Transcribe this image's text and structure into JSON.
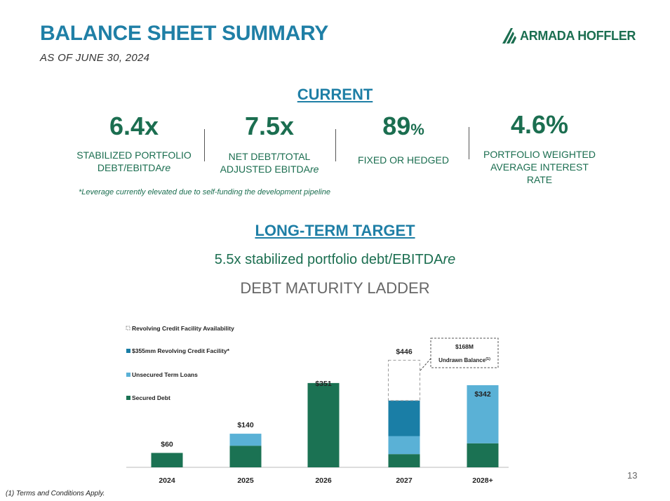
{
  "header": {
    "title": "BALANCE SHEET SUMMARY",
    "subtitle": "AS OF JUNE 30, 2024",
    "logo_text": "ARMADA HOFFLER"
  },
  "current": {
    "heading": "CURRENT",
    "metrics": [
      {
        "value": "6.4x",
        "suffix": "",
        "label_line1": "STABILIZED PORTFOLIO",
        "label_line2": "DEBT/EBITDA",
        "label_italic": "re"
      },
      {
        "value": "7.5x",
        "suffix": "",
        "label_line1": "NET DEBT/TOTAL",
        "label_line2": "ADJUSTED EBITDA",
        "label_italic": "re"
      },
      {
        "value": "89",
        "suffix": "%",
        "label_line1": "FIXED OR HEDGED",
        "label_line2": "",
        "label_italic": ""
      },
      {
        "value": "4.6%",
        "suffix": "",
        "label_line1": "PORTFOLIO WEIGHTED",
        "label_line2": "AVERAGE INTEREST",
        "label_line3": "RATE"
      }
    ],
    "note": "*Leverage currently elevated due to self-funding the development pipeline"
  },
  "long_term": {
    "heading": "LONG-TERM TARGET",
    "text_main": "5.5x stabilized portfolio debt/EBITDA",
    "text_italic": "re"
  },
  "ladder_title": "DEBT MATURITY LADDER",
  "colors": {
    "secured": "#1b7253",
    "unsecured": "#5ab1d6",
    "revolver": "#1a7ea6",
    "availability_border": "#9a9a9a"
  },
  "chart_data": {
    "type": "bar",
    "stacked": true,
    "categories": [
      "2024",
      "2025",
      "2026",
      "2027",
      "2028+"
    ],
    "series": [
      {
        "name": "Secured Debt",
        "values": [
          60,
          90,
          351,
          55,
          100
        ]
      },
      {
        "name": "Unsecured Term Loans",
        "values": [
          0,
          50,
          0,
          75,
          242
        ]
      },
      {
        "name": "$355mm Revolving Credit Facility*",
        "values": [
          0,
          0,
          0,
          148,
          0
        ]
      },
      {
        "name": "Revolving Credit Facility Availability",
        "values": [
          0,
          0,
          0,
          168,
          0
        ]
      }
    ],
    "total_labels": [
      "$60",
      "$140",
      "$351",
      "$446",
      "$342"
    ],
    "callout": {
      "line1": "$168M",
      "line2": "Undrawn Balance",
      "sup": "(1)"
    },
    "legend_position": "top-left",
    "ylim": [
      0,
      450
    ]
  },
  "page_number": "13",
  "footnote": "(1)    Terms and Conditions Apply."
}
